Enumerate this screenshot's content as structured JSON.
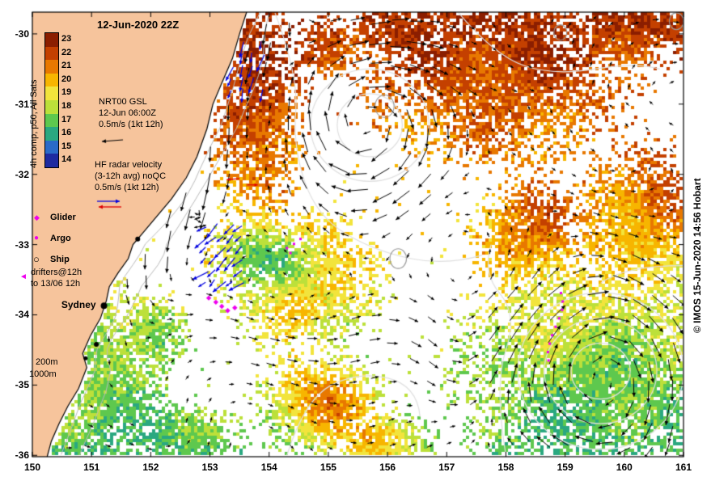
{
  "title": "12-Jun-2020 22Z",
  "watermark": "© IMOS 15-Jun-2020 14:56 Hobart",
  "colorbar": {
    "label": "4h comp, p50, All Sats",
    "ticks": [
      "23",
      "22",
      "21",
      "20",
      "19",
      "18",
      "17",
      "16",
      "15",
      "14"
    ],
    "colors": [
      "#8B1E00",
      "#C44000",
      "#E87800",
      "#F7B500",
      "#F2E43C",
      "#BCE03A",
      "#5EC84E",
      "#2AA880",
      "#2A6AC8",
      "#1E2AA0"
    ]
  },
  "sat_block": {
    "line1": "NRT00 GSL",
    "line2": "12-Jun 06:00Z",
    "line3": "0.5m/s (1kt 12h)"
  },
  "hf_block": {
    "line1": "HF radar velocity",
    "line2": "(3-12h avg) noQC",
    "line3": "0.5m/s (1kt 12h)"
  },
  "legend": {
    "glider": "Glider",
    "argo": "Argo",
    "ship": "Ship",
    "drifters_line1": "drifters@12h",
    "drifters_line2": "to 13/06 12h"
  },
  "city": {
    "label": "Sydney",
    "lon": 151.21,
    "lat": -33.87
  },
  "depth_labels": {
    "d200": "200m",
    "d1000": "1000m"
  },
  "axes": {
    "x_ticks": [
      150,
      151,
      152,
      153,
      154,
      155,
      156,
      157,
      158,
      159,
      160,
      161
    ],
    "y_ticks": [
      -30,
      -31,
      -32,
      -33,
      -34,
      -35,
      -36
    ]
  },
  "map": {
    "land_color": "#F6C49C",
    "hf_blue": "#0000E0",
    "hf_red": "#E00000",
    "magenta": "#EE00EE",
    "coastline": [
      [
        153.62,
        -29.69
      ],
      [
        153.5,
        -30.0
      ],
      [
        153.38,
        -30.35
      ],
      [
        153.2,
        -30.7
      ],
      [
        153.05,
        -31.0
      ],
      [
        152.95,
        -31.35
      ],
      [
        152.78,
        -31.75
      ],
      [
        152.6,
        -32.05
      ],
      [
        152.35,
        -32.35
      ],
      [
        152.1,
        -32.6
      ],
      [
        151.85,
        -32.85
      ],
      [
        151.7,
        -33.0
      ],
      [
        151.62,
        -33.2
      ],
      [
        151.45,
        -33.4
      ],
      [
        151.3,
        -33.6
      ],
      [
        151.25,
        -33.8
      ],
      [
        151.15,
        -34.05
      ],
      [
        150.98,
        -34.3
      ],
      [
        150.85,
        -34.55
      ],
      [
        150.92,
        -34.75
      ],
      [
        150.78,
        -35.05
      ],
      [
        150.6,
        -35.3
      ],
      [
        150.45,
        -35.55
      ],
      [
        150.32,
        -35.8
      ],
      [
        150.25,
        -36.02
      ]
    ],
    "towns": [
      {
        "lon": 151.21,
        "lat": -33.87,
        "r": 4
      },
      {
        "lon": 151.78,
        "lat": -32.92,
        "r": 3
      },
      {
        "lon": 151.08,
        "lat": -34.42,
        "r": 3
      },
      {
        "lon": 150.9,
        "lat": -34.62,
        "r": 2.5
      }
    ],
    "coverage_blobs": [
      {
        "lon": 157.9,
        "lat": -30.55,
        "rx": 2.1,
        "ry": 1.25
      },
      {
        "lon": 156.2,
        "lat": -29.95,
        "rx": 0.9,
        "ry": 0.45
      },
      {
        "lon": 159.9,
        "lat": -30.05,
        "rx": 1.0,
        "ry": 0.5
      },
      {
        "lon": 153.8,
        "lat": -31.2,
        "rx": 0.75,
        "ry": 1.5
      },
      {
        "lon": 153.45,
        "lat": -29.95,
        "rx": 0.55,
        "ry": 0.4
      },
      {
        "lon": 154.6,
        "lat": -33.55,
        "rx": 1.25,
        "ry": 0.95
      },
      {
        "lon": 153.9,
        "lat": -33.15,
        "rx": 0.9,
        "ry": 0.6
      },
      {
        "lon": 159.6,
        "lat": -34.8,
        "rx": 2.3,
        "ry": 1.7
      },
      {
        "lon": 160.3,
        "lat": -32.7,
        "rx": 1.1,
        "ry": 1.1
      },
      {
        "lon": 158.4,
        "lat": -32.9,
        "rx": 0.9,
        "ry": 0.8
      },
      {
        "lon": 154.9,
        "lat": -35.3,
        "rx": 1.05,
        "ry": 0.75
      },
      {
        "lon": 151.3,
        "lat": -35.0,
        "rx": 0.9,
        "ry": 1.4
      },
      {
        "lon": 152.0,
        "lat": -34.25,
        "rx": 0.6,
        "ry": 0.55
      },
      {
        "lon": 151.0,
        "lat": -33.3,
        "rx": 0.5,
        "ry": 0.7
      },
      {
        "lon": 155.0,
        "lat": -30.2,
        "rx": 0.6,
        "ry": 0.4
      },
      {
        "lon": 160.6,
        "lat": -29.9,
        "rx": 0.7,
        "ry": 0.4
      },
      {
        "lon": 152.6,
        "lat": -35.75,
        "rx": 0.9,
        "ry": 0.5
      },
      {
        "lon": 155.9,
        "lat": -35.85,
        "rx": 0.9,
        "ry": 0.45
      },
      {
        "lon": 150.7,
        "lat": -35.8,
        "rx": 0.5,
        "ry": 0.4
      }
    ],
    "sst_blobs": [
      {
        "lon": 153.85,
        "lat": -31.2,
        "rx": 0.7,
        "ry": 1.4,
        "dt": 0.9
      },
      {
        "lon": 158.6,
        "lat": -32.7,
        "rx": 1.0,
        "ry": 0.8,
        "dt": 1.6
      },
      {
        "lon": 160.7,
        "lat": -32.2,
        "rx": 0.8,
        "ry": 0.8,
        "dt": 1.5
      },
      {
        "lon": 157.9,
        "lat": -30.4,
        "rx": 2.0,
        "ry": 1.0,
        "dt": 0.4
      },
      {
        "lon": 154.9,
        "lat": -35.25,
        "rx": 0.9,
        "ry": 0.6,
        "dt": 3.4
      },
      {
        "lon": 155.9,
        "lat": -35.85,
        "rx": 0.8,
        "ry": 0.4,
        "dt": 2.6
      },
      {
        "lon": 154.35,
        "lat": -33.9,
        "rx": 0.5,
        "ry": 0.35,
        "dt": 1.4
      },
      {
        "lon": 153.9,
        "lat": -33.15,
        "rx": 0.8,
        "ry": 0.5,
        "dt": -2.4
      },
      {
        "lon": 152.05,
        "lat": -34.3,
        "rx": 0.5,
        "ry": 0.45,
        "dt": -1.5
      },
      {
        "lon": 159.7,
        "lat": -35.0,
        "rx": 1.6,
        "ry": 1.0,
        "dt": -0.5
      },
      {
        "lon": 151.0,
        "lat": -33.9,
        "rx": 0.4,
        "ry": 0.5,
        "dt": -1.0
      },
      {
        "lon": 151.4,
        "lat": -35.3,
        "rx": 0.8,
        "ry": 0.9,
        "dt": -0.3
      }
    ],
    "eddies": [
      {
        "lon": 155.7,
        "lat": -31.3,
        "r": 1.15,
        "s": -1,
        "v": 0.5
      },
      {
        "lon": 159.6,
        "lat": -34.8,
        "r": 1.35,
        "s": -1,
        "v": 0.48
      },
      {
        "lon": 157.2,
        "lat": -34.6,
        "r": 0.8,
        "s": 1,
        "v": 0.15
      }
    ],
    "gray_rings": [
      {
        "lon": 155.95,
        "lat": -31.03,
        "r": 0.16
      },
      {
        "lon": 156.18,
        "lat": -33.2,
        "r": 0.14
      },
      {
        "lon": 158.92,
        "lat": -29.98,
        "r": 0.11
      },
      {
        "lon": 160.88,
        "lat": -29.82,
        "r": 0.12
      }
    ],
    "gsl_ellipses": [
      {
        "lon": 159.6,
        "lat": -34.8,
        "rx": 0.5,
        "ry": 0.4
      },
      {
        "lon": 159.6,
        "lat": -34.8,
        "rx": 0.95,
        "ry": 0.75
      },
      {
        "lon": 159.6,
        "lat": -34.8,
        "rx": 1.4,
        "ry": 1.12
      },
      {
        "lon": 155.7,
        "lat": -31.3,
        "rx": 1.0,
        "ry": 0.8
      },
      {
        "lon": 155.7,
        "lat": -31.3,
        "rx": 0.55,
        "ry": 0.45
      }
    ],
    "gsl_paths": [
      [
        [
          154.1,
          -29.7
        ],
        [
          154.5,
          -30.6
        ],
        [
          154.4,
          -31.6
        ],
        [
          154.8,
          -32.6
        ],
        [
          155.8,
          -33.1
        ],
        [
          157.0,
          -33.3
        ],
        [
          158.2,
          -33.0
        ]
      ],
      [
        [
          157.2,
          -29.7
        ],
        [
          157.8,
          -30.3
        ],
        [
          158.8,
          -30.6
        ],
        [
          160.2,
          -30.4
        ],
        [
          161.0,
          -30.6
        ]
      ],
      [
        [
          158.0,
          -36.0
        ],
        [
          157.8,
          -35.0
        ],
        [
          158.2,
          -34.0
        ],
        [
          157.6,
          -33.4
        ],
        [
          157.9,
          -32.6
        ]
      ],
      [
        [
          161.0,
          -33.3
        ],
        [
          160.0,
          -33.3
        ],
        [
          159.2,
          -33.8
        ]
      ],
      [
        [
          154.3,
          -36.0
        ],
        [
          154.6,
          -35.2
        ],
        [
          155.5,
          -34.8
        ],
        [
          156.5,
          -35.0
        ],
        [
          156.6,
          -35.9
        ]
      ]
    ],
    "hf_clusters": [
      {
        "lon0": 153.38,
        "lat0": -30.12,
        "nx": 4,
        "ny": 5,
        "dlon": 0.17,
        "dlat": -0.17,
        "dir": 250,
        "spread": 40
      },
      {
        "lon0": 152.95,
        "lat0": -32.72,
        "nx": 5,
        "ny": 6,
        "dlon": 0.15,
        "dlat": -0.16,
        "dir": 222,
        "spread": 36
      }
    ],
    "red_arrows": [
      {
        "lon": 153.5,
        "lat": -32.06,
        "ang": 185,
        "len": 16
      },
      {
        "lon": 153.63,
        "lat": -32.15,
        "ang": 0,
        "len": 13
      }
    ],
    "drifter_track": [
      [
        158.93,
        -33.69
      ],
      [
        158.96,
        -33.81
      ],
      [
        158.95,
        -33.93
      ],
      [
        158.9,
        -34.05
      ],
      [
        158.84,
        -34.17
      ],
      [
        158.78,
        -34.29
      ],
      [
        158.74,
        -34.41
      ],
      [
        158.71,
        -34.53
      ],
      [
        158.72,
        -34.65
      ]
    ],
    "magenta_dots": [
      [
        154.3,
        -33.05
      ],
      [
        154.42,
        -32.99
      ],
      [
        154.53,
        -32.92
      ],
      [
        154.36,
        -33.12
      ]
    ],
    "glider_diamonds": [
      [
        152.98,
        -33.76
      ],
      [
        153.1,
        -33.82
      ],
      [
        153.2,
        -33.88
      ],
      [
        153.3,
        -33.94
      ],
      [
        153.42,
        -33.9
      ]
    ]
  }
}
